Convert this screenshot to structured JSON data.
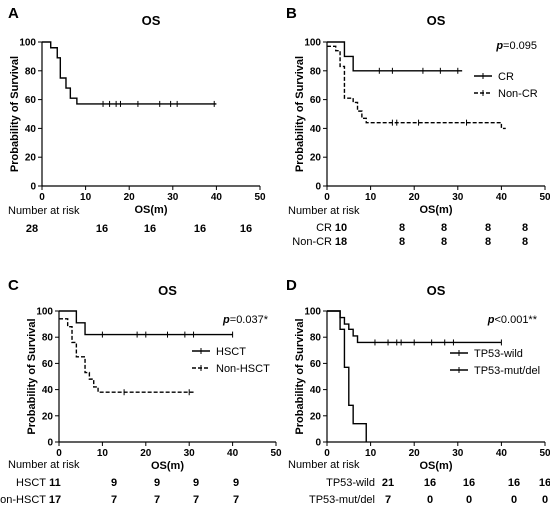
{
  "chart_data": [
    {
      "panel": "A",
      "type": "line",
      "title": "OS",
      "xlabel": "OS(m)",
      "ylabel": "Probability of Survival",
      "xlim": [
        0,
        50
      ],
      "ylim": [
        0,
        100
      ],
      "xticks": [
        "0",
        "10",
        "20",
        "30",
        "40",
        "50"
      ],
      "yticks": [
        "0",
        "20",
        "40",
        "60",
        "80",
        "100"
      ],
      "p_value": "",
      "series": [
        {
          "name": "",
          "dashed": false,
          "steps": [
            [
              0,
              100
            ],
            [
              2,
              96
            ],
            [
              3.5,
              89
            ],
            [
              4.2,
              75
            ],
            [
              5.5,
              68
            ],
            [
              6.5,
              61
            ],
            [
              8,
              57
            ],
            [
              40,
              57
            ]
          ],
          "censors": [
            [
              14,
              57
            ],
            [
              15.5,
              57
            ],
            [
              17,
              57
            ],
            [
              18,
              57
            ],
            [
              22,
              57
            ],
            [
              27,
              57
            ],
            [
              29.5,
              57
            ],
            [
              31,
              57
            ],
            [
              39.5,
              57
            ]
          ]
        }
      ],
      "risk_table": {
        "header": "Number at risk",
        "rows": [
          {
            "label": "",
            "values": [
              "28",
              "16",
              "16",
              "16",
              "16"
            ]
          }
        ]
      }
    },
    {
      "panel": "B",
      "type": "line",
      "title": "OS",
      "xlabel": "OS(m)",
      "ylabel": "Probability of Survival",
      "xlim": [
        0,
        50
      ],
      "ylim": [
        0,
        100
      ],
      "xticks": [
        "0",
        "10",
        "20",
        "30",
        "40",
        "50"
      ],
      "yticks": [
        "0",
        "20",
        "40",
        "60",
        "80",
        "100"
      ],
      "p_value": "0.095",
      "series": [
        {
          "name": "CR",
          "dashed": false,
          "steps": [
            [
              0,
              100
            ],
            [
              3,
              100
            ],
            [
              4,
              90
            ],
            [
              6,
              80
            ],
            [
              31,
              80
            ]
          ],
          "censors": [
            [
              12,
              80
            ],
            [
              15,
              80
            ],
            [
              22,
              80
            ],
            [
              26,
              80
            ],
            [
              30,
              80
            ]
          ]
        },
        {
          "name": "Non-CR",
          "dashed": true,
          "steps": [
            [
              0,
              97
            ],
            [
              2,
              94
            ],
            [
              3,
              83
            ],
            [
              4,
              61
            ],
            [
              6,
              58
            ],
            [
              7,
              52
            ],
            [
              8,
              47
            ],
            [
              9,
              44
            ],
            [
              40,
              44
            ],
            [
              40,
              40
            ],
            [
              41,
              40
            ]
          ],
          "censors": [
            [
              15,
              44
            ],
            [
              16,
              44
            ],
            [
              21,
              44
            ],
            [
              32,
              44
            ]
          ]
        }
      ],
      "risk_table": {
        "header": "Number at risk",
        "rows": [
          {
            "label": "CR",
            "values": [
              "10",
              "8",
              "8",
              "8",
              "8"
            ]
          },
          {
            "label": "Non-CR",
            "values": [
              "18",
              "8",
              "8",
              "8",
              "8"
            ]
          }
        ]
      }
    },
    {
      "panel": "C",
      "type": "line",
      "title": "OS",
      "xlabel": "OS(m)",
      "ylabel": "Probability of Survival",
      "xlim": [
        0,
        50
      ],
      "ylim": [
        0,
        100
      ],
      "xticks": [
        "0",
        "10",
        "20",
        "30",
        "40",
        "50"
      ],
      "yticks": [
        "0",
        "20",
        "40",
        "60",
        "80",
        "100"
      ],
      "p_value": "0.037*",
      "series": [
        {
          "name": "HSCT",
          "dashed": false,
          "steps": [
            [
              0,
              100
            ],
            [
              3.5,
              100
            ],
            [
              4,
              91
            ],
            [
              6,
              82
            ],
            [
              40,
              82
            ]
          ],
          "censors": [
            [
              10,
              82
            ],
            [
              18,
              82
            ],
            [
              20,
              82
            ],
            [
              25,
              82
            ],
            [
              29,
              82
            ],
            [
              31,
              82
            ],
            [
              40,
              82
            ]
          ]
        },
        {
          "name": "Non-HSCT",
          "dashed": true,
          "steps": [
            [
              0,
              94
            ],
            [
              2,
              88
            ],
            [
              3,
              76
            ],
            [
              4,
              65
            ],
            [
              6,
              53
            ],
            [
              7,
              48
            ],
            [
              8,
              42
            ],
            [
              9,
              38
            ],
            [
              31,
              38
            ]
          ],
          "censors": [
            [
              15,
              38
            ],
            [
              30,
              38
            ]
          ]
        }
      ],
      "risk_table": {
        "header": "Number at risk",
        "rows": [
          {
            "label": "HSCT",
            "values": [
              "11",
              "9",
              "9",
              "9",
              "9"
            ]
          },
          {
            "label": "Non-HSCT",
            "values": [
              "17",
              "7",
              "7",
              "7",
              "7"
            ]
          }
        ]
      }
    },
    {
      "panel": "D",
      "type": "line",
      "title": "OS",
      "xlabel": "OS(m)",
      "ylabel": "Probability of Survival",
      "xlim": [
        0,
        50
      ],
      "ylim": [
        0,
        100
      ],
      "xticks": [
        "0",
        "10",
        "20",
        "30",
        "40",
        "50"
      ],
      "yticks": [
        "0",
        "20",
        "40",
        "60",
        "80",
        "100"
      ],
      "p_value": "<0.001**",
      "series": [
        {
          "name": "TP53-wild",
          "dashed": false,
          "steps": [
            [
              0,
              100
            ],
            [
              3,
              95
            ],
            [
              4,
              90
            ],
            [
              5,
              86
            ],
            [
              6,
              81
            ],
            [
              7,
              76
            ],
            [
              40,
              76
            ]
          ],
          "censors": [
            [
              11,
              76
            ],
            [
              14,
              76
            ],
            [
              16,
              76
            ],
            [
              17,
              76
            ],
            [
              20,
              76
            ],
            [
              24,
              76
            ],
            [
              27,
              76
            ],
            [
              29,
              76
            ],
            [
              40,
              76
            ]
          ]
        },
        {
          "name": "TP53-mut/del",
          "dashed": false,
          "steps": [
            [
              0,
              100
            ],
            [
              3,
              86
            ],
            [
              4,
              57
            ],
            [
              5,
              28
            ],
            [
              6,
              14
            ],
            [
              9,
              0
            ]
          ],
          "censors": []
        }
      ],
      "risk_table": {
        "header": "Number at risk",
        "rows": [
          {
            "label": "TP53-wild",
            "values": [
              "21",
              "16",
              "16",
              "16",
              "16"
            ]
          },
          {
            "label": "TP53-mut/del",
            "values": [
              "7",
              "0",
              "0",
              "0",
              "0"
            ]
          }
        ]
      }
    }
  ]
}
